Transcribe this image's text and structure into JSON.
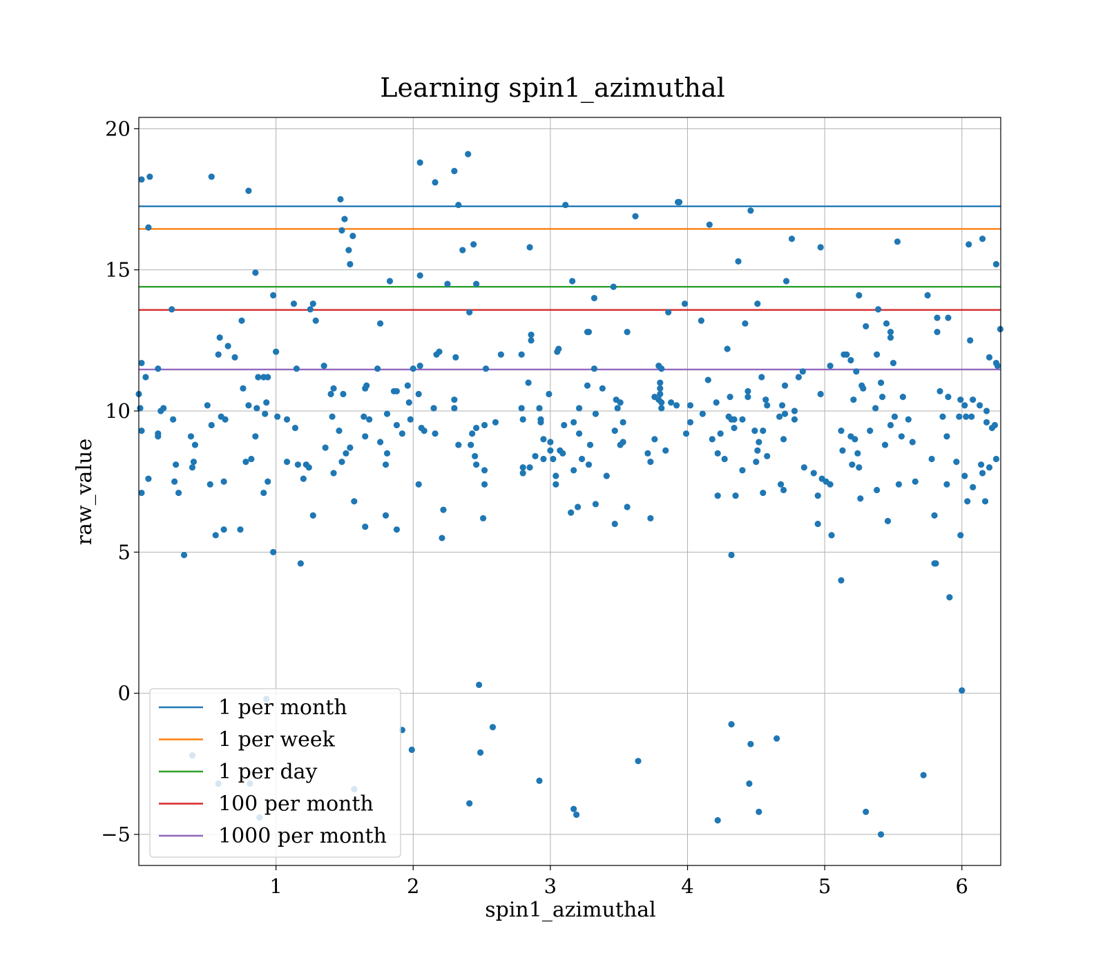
{
  "chart_data": {
    "type": "scatter",
    "title": "Learning spin1_azimuthal",
    "xlabel": "spin1_azimuthal",
    "ylabel": "raw_value",
    "xlim": [
      0.0,
      6.283
    ],
    "ylim": [
      -6.1,
      20.4
    ],
    "xticks": [
      1,
      2,
      3,
      4,
      5,
      6
    ],
    "yticks": [
      -5,
      0,
      5,
      10,
      15,
      20
    ],
    "xtick_labels": [
      "1",
      "2",
      "3",
      "4",
      "5",
      "6"
    ],
    "ytick_labels": [
      "−5",
      "0",
      "5",
      "10",
      "15",
      "20"
    ],
    "grid": true,
    "legend_position": "lower-left",
    "point_color": "#1f77b4",
    "hlines": [
      {
        "name": "1 per month",
        "y": 17.25,
        "color": "#1f77b4"
      },
      {
        "name": "1 per week",
        "y": 16.45,
        "color": "#ff7f0e"
      },
      {
        "name": "1 per day",
        "y": 14.4,
        "color": "#2ca02c"
      },
      {
        "name": "100 per month",
        "y": 13.58,
        "color": "#d62728"
      },
      {
        "name": "1000 per month",
        "y": 11.47,
        "color": "#9467bd"
      }
    ],
    "points": [
      [
        0.02,
        18.2
      ],
      [
        0.08,
        18.3
      ],
      [
        0.07,
        16.5
      ],
      [
        0.02,
        11.7
      ],
      [
        0.05,
        11.2
      ],
      [
        0.14,
        11.5
      ],
      [
        0.24,
        13.6
      ],
      [
        0.0,
        10.6
      ],
      [
        0.01,
        10.1
      ],
      [
        0.02,
        9.3
      ],
      [
        0.02,
        7.1
      ],
      [
        0.07,
        7.6
      ],
      [
        0.16,
        10.0
      ],
      [
        0.18,
        10.1
      ],
      [
        0.14,
        9.2
      ],
      [
        0.14,
        9.1
      ],
      [
        0.25,
        9.7
      ],
      [
        0.27,
        8.1
      ],
      [
        0.26,
        7.5
      ],
      [
        0.29,
        7.1
      ],
      [
        0.33,
        4.9
      ],
      [
        0.38,
        9.1
      ],
      [
        0.4,
        8.2
      ],
      [
        0.39,
        8.0
      ],
      [
        0.41,
        8.8
      ],
      [
        0.53,
        18.3
      ],
      [
        0.5,
        10.2
      ],
      [
        0.53,
        9.5
      ],
      [
        0.52,
        7.4
      ],
      [
        0.59,
        12.6
      ],
      [
        0.58,
        12.0
      ],
      [
        0.65,
        12.3
      ],
      [
        0.6,
        9.8
      ],
      [
        0.63,
        9.7
      ],
      [
        0.62,
        7.5
      ],
      [
        0.56,
        5.6
      ],
      [
        0.62,
        5.8
      ],
      [
        0.75,
        13.2
      ],
      [
        0.7,
        11.9
      ],
      [
        0.76,
        10.8
      ],
      [
        0.74,
        5.8
      ],
      [
        0.78,
        8.2
      ],
      [
        0.8,
        17.8
      ],
      [
        0.8,
        10.2
      ],
      [
        0.82,
        8.3
      ],
      [
        0.85,
        14.9
      ],
      [
        0.85,
        9.1
      ],
      [
        0.86,
        10.1
      ],
      [
        0.87,
        11.2
      ],
      [
        0.91,
        11.2
      ],
      [
        0.93,
        10.3
      ],
      [
        0.94,
        11.2
      ],
      [
        0.92,
        9.9
      ],
      [
        0.91,
        7.1
      ],
      [
        0.94,
        7.5
      ],
      [
        0.98,
        14.1
      ],
      [
        0.98,
        5.0
      ],
      [
        1.0,
        12.1
      ],
      [
        1.01,
        9.8
      ],
      [
        1.08,
        9.7
      ],
      [
        1.08,
        8.2
      ],
      [
        1.13,
        13.8
      ],
      [
        1.14,
        9.4
      ],
      [
        1.15,
        11.5
      ],
      [
        1.16,
        8.1
      ],
      [
        1.18,
        4.6
      ],
      [
        1.2,
        7.6
      ],
      [
        1.22,
        8.1
      ],
      [
        1.24,
        8.0
      ],
      [
        1.25,
        13.6
      ],
      [
        1.27,
        13.8
      ],
      [
        1.27,
        6.3
      ],
      [
        1.29,
        13.2
      ],
      [
        1.35,
        11.6
      ],
      [
        1.36,
        8.7
      ],
      [
        1.4,
        10.6
      ],
      [
        1.42,
        10.8
      ],
      [
        1.42,
        7.8
      ],
      [
        1.41,
        9.8
      ],
      [
        1.47,
        17.5
      ],
      [
        1.48,
        16.4
      ],
      [
        1.5,
        16.8
      ],
      [
        1.46,
        9.3
      ],
      [
        1.48,
        8.2
      ],
      [
        1.49,
        10.6
      ],
      [
        1.53,
        15.7
      ],
      [
        1.54,
        15.2
      ],
      [
        1.56,
        16.2
      ],
      [
        1.51,
        8.5
      ],
      [
        1.54,
        8.7
      ],
      [
        1.57,
        6.8
      ],
      [
        1.65,
        10.8
      ],
      [
        1.66,
        10.9
      ],
      [
        1.64,
        9.8
      ],
      [
        1.65,
        9.1
      ],
      [
        1.68,
        9.7
      ],
      [
        1.65,
        5.9
      ],
      [
        1.74,
        11.5
      ],
      [
        1.76,
        13.1
      ],
      [
        1.76,
        8.9
      ],
      [
        1.81,
        8.5
      ],
      [
        1.81,
        9.9
      ],
      [
        1.8,
        8.1
      ],
      [
        1.8,
        6.3
      ],
      [
        1.83,
        14.6
      ],
      [
        1.86,
        10.7
      ],
      [
        1.88,
        10.7
      ],
      [
        1.88,
        9.5
      ],
      [
        1.92,
        9.2
      ],
      [
        1.88,
        5.8
      ],
      [
        1.96,
        10.9
      ],
      [
        1.97,
        10.3
      ],
      [
        1.98,
        9.7
      ],
      [
        2.0,
        11.5
      ],
      [
        2.05,
        18.8
      ],
      [
        2.05,
        14.8
      ],
      [
        2.05,
        11.6
      ],
      [
        2.04,
        10.6
      ],
      [
        2.06,
        9.4
      ],
      [
        2.08,
        9.3
      ],
      [
        2.04,
        7.4
      ],
      [
        2.16,
        18.1
      ],
      [
        2.17,
        12.0
      ],
      [
        2.19,
        12.1
      ],
      [
        2.15,
        10.1
      ],
      [
        2.16,
        9.2
      ],
      [
        2.21,
        5.5
      ],
      [
        2.22,
        6.5
      ],
      [
        2.25,
        14.5
      ],
      [
        2.3,
        18.5
      ],
      [
        2.33,
        17.3
      ],
      [
        2.36,
        15.7
      ],
      [
        2.31,
        11.9
      ],
      [
        2.3,
        10.4
      ],
      [
        2.3,
        10.1
      ],
      [
        2.33,
        8.8
      ],
      [
        2.4,
        19.1
      ],
      [
        2.41,
        13.5
      ],
      [
        2.44,
        15.9
      ],
      [
        2.46,
        14.5
      ],
      [
        2.43,
        9.2
      ],
      [
        2.46,
        9.4
      ],
      [
        2.42,
        8.8
      ],
      [
        2.45,
        8.4
      ],
      [
        2.46,
        8.1
      ],
      [
        2.52,
        9.5
      ],
      [
        2.53,
        11.5
      ],
      [
        2.52,
        7.9
      ],
      [
        2.52,
        7.4
      ],
      [
        2.51,
        6.2
      ],
      [
        2.64,
        12.0
      ],
      [
        2.6,
        9.6
      ],
      [
        2.79,
        12.0
      ],
      [
        2.79,
        10.1
      ],
      [
        2.8,
        9.7
      ],
      [
        2.8,
        8.0
      ],
      [
        2.8,
        7.8
      ],
      [
        2.84,
        11.0
      ],
      [
        2.85,
        15.8
      ],
      [
        2.86,
        12.7
      ],
      [
        2.86,
        12.5
      ],
      [
        2.85,
        8.0
      ],
      [
        2.89,
        8.4
      ],
      [
        2.92,
        10.1
      ],
      [
        2.93,
        9.6
      ],
      [
        2.95,
        9.0
      ],
      [
        2.95,
        8.3
      ],
      [
        2.93,
        9.7
      ],
      [
        2.99,
        10.6
      ],
      [
        3.0,
        8.6
      ],
      [
        3.0,
        8.9
      ],
      [
        3.02,
        8.3
      ],
      [
        3.05,
        12.1
      ],
      [
        3.06,
        12.2
      ],
      [
        3.04,
        7.4
      ],
      [
        3.04,
        7.7
      ],
      [
        3.07,
        8.6
      ],
      [
        3.09,
        8.5
      ],
      [
        3.11,
        17.3
      ],
      [
        3.1,
        9.5
      ],
      [
        3.16,
        14.6
      ],
      [
        3.15,
        6.4
      ],
      [
        3.17,
        9.6
      ],
      [
        3.17,
        7.9
      ],
      [
        3.2,
        6.6
      ],
      [
        3.21,
        10.1
      ],
      [
        3.21,
        9.2
      ],
      [
        3.23,
        8.3
      ],
      [
        3.27,
        12.8
      ],
      [
        3.28,
        12.8
      ],
      [
        3.27,
        10.9
      ],
      [
        3.28,
        8.1
      ],
      [
        3.29,
        8.8
      ],
      [
        3.32,
        14.0
      ],
      [
        3.32,
        11.5
      ],
      [
        3.33,
        9.9
      ],
      [
        3.33,
        6.7
      ],
      [
        3.38,
        10.8
      ],
      [
        3.41,
        7.7
      ],
      [
        3.46,
        14.4
      ],
      [
        3.47,
        9.3
      ],
      [
        3.47,
        6.0
      ],
      [
        3.48,
        10.4
      ],
      [
        3.49,
        10.1
      ],
      [
        3.51,
        10.3
      ],
      [
        3.51,
        8.8
      ],
      [
        3.53,
        8.9
      ],
      [
        3.53,
        9.6
      ],
      [
        3.56,
        12.8
      ],
      [
        3.56,
        6.6
      ],
      [
        3.62,
        16.9
      ],
      [
        3.71,
        8.5
      ],
      [
        3.73,
        8.2
      ],
      [
        3.73,
        6.2
      ],
      [
        3.76,
        10.5
      ],
      [
        3.76,
        9.0
      ],
      [
        3.79,
        11.6
      ],
      [
        3.8,
        11.0
      ],
      [
        3.8,
        10.8
      ],
      [
        3.8,
        10.6
      ],
      [
        3.79,
        10.4
      ],
      [
        3.81,
        11.5
      ],
      [
        3.81,
        10.3
      ],
      [
        3.81,
        10.1
      ],
      [
        3.84,
        8.6
      ],
      [
        3.86,
        13.5
      ],
      [
        3.88,
        10.3
      ],
      [
        3.93,
        17.4
      ],
      [
        3.94,
        17.4
      ],
      [
        3.92,
        10.2
      ],
      [
        3.98,
        13.8
      ],
      [
        3.99,
        9.2
      ],
      [
        4.02,
        10.2
      ],
      [
        4.02,
        9.6
      ],
      [
        4.1,
        13.2
      ],
      [
        4.11,
        9.9
      ],
      [
        4.15,
        11.1
      ],
      [
        4.16,
        16.6
      ],
      [
        4.18,
        9.0
      ],
      [
        4.21,
        10.3
      ],
      [
        4.22,
        8.5
      ],
      [
        4.22,
        7.0
      ],
      [
        4.24,
        9.2
      ],
      [
        4.27,
        8.3
      ],
      [
        4.29,
        12.2
      ],
      [
        4.31,
        10.5
      ],
      [
        4.3,
        9.8
      ],
      [
        4.32,
        9.7
      ],
      [
        4.34,
        9.7
      ],
      [
        4.34,
        9.4
      ],
      [
        4.35,
        7.0
      ],
      [
        4.32,
        4.9
      ],
      [
        4.37,
        15.3
      ],
      [
        4.4,
        9.7
      ],
      [
        4.42,
        13.1
      ],
      [
        4.44,
        10.7
      ],
      [
        4.44,
        10.5
      ],
      [
        4.46,
        17.1
      ],
      [
        4.4,
        7.9
      ],
      [
        4.49,
        9.3
      ],
      [
        4.5,
        8.2
      ],
      [
        4.51,
        13.8
      ],
      [
        4.51,
        8.6
      ],
      [
        4.52,
        8.9
      ],
      [
        4.54,
        11.2
      ],
      [
        4.55,
        9.3
      ],
      [
        4.55,
        7.1
      ],
      [
        4.57,
        10.4
      ],
      [
        4.58,
        10.2
      ],
      [
        4.58,
        8.4
      ],
      [
        4.67,
        9.8
      ],
      [
        4.69,
        10.2
      ],
      [
        4.71,
        10.9
      ],
      [
        4.72,
        14.6
      ],
      [
        4.71,
        9.9
      ],
      [
        4.7,
        9.0
      ],
      [
        4.68,
        7.4
      ],
      [
        4.7,
        7.2
      ],
      [
        4.76,
        16.1
      ],
      [
        4.78,
        10.0
      ],
      [
        4.78,
        9.7
      ],
      [
        4.81,
        11.2
      ],
      [
        4.84,
        11.4
      ],
      [
        4.85,
        8.0
      ],
      [
        4.92,
        7.8
      ],
      [
        4.95,
        7.0
      ],
      [
        4.95,
        6.0
      ],
      [
        4.97,
        15.8
      ],
      [
        4.97,
        10.6
      ],
      [
        4.98,
        7.6
      ],
      [
        5.01,
        7.5
      ],
      [
        5.04,
        7.4
      ],
      [
        5.04,
        11.6
      ],
      [
        5.05,
        5.6
      ],
      [
        5.12,
        9.3
      ],
      [
        5.13,
        8.6
      ],
      [
        5.12,
        4.0
      ],
      [
        5.14,
        12.0
      ],
      [
        5.16,
        12.0
      ],
      [
        5.19,
        11.8
      ],
      [
        5.19,
        9.1
      ],
      [
        5.2,
        8.1
      ],
      [
        5.21,
        10.4
      ],
      [
        5.22,
        9.0
      ],
      [
        5.23,
        11.4
      ],
      [
        5.25,
        14.1
      ],
      [
        5.24,
        8.5
      ],
      [
        5.25,
        8.0
      ],
      [
        5.27,
        10.9
      ],
      [
        5.28,
        10.8
      ],
      [
        5.26,
        6.9
      ],
      [
        5.3,
        13.0
      ],
      [
        5.33,
        9.3
      ],
      [
        5.37,
        10.1
      ],
      [
        5.38,
        12.0
      ],
      [
        5.39,
        13.6
      ],
      [
        5.38,
        7.2
      ],
      [
        5.41,
        11.0
      ],
      [
        5.42,
        10.5
      ],
      [
        5.44,
        8.8
      ],
      [
        5.45,
        13.1
      ],
      [
        5.46,
        6.1
      ],
      [
        5.48,
        12.8
      ],
      [
        5.48,
        12.6
      ],
      [
        5.48,
        9.5
      ],
      [
        5.5,
        11.7
      ],
      [
        5.51,
        9.8
      ],
      [
        5.53,
        16.0
      ],
      [
        5.54,
        7.4
      ],
      [
        5.57,
        10.5
      ],
      [
        5.56,
        9.1
      ],
      [
        5.61,
        9.7
      ],
      [
        5.64,
        8.9
      ],
      [
        5.66,
        7.5
      ],
      [
        5.75,
        14.1
      ],
      [
        5.78,
        8.3
      ],
      [
        5.8,
        6.3
      ],
      [
        5.8,
        4.6
      ],
      [
        5.81,
        4.6
      ],
      [
        5.82,
        13.3
      ],
      [
        5.82,
        12.8
      ],
      [
        5.84,
        10.7
      ],
      [
        5.86,
        9.8
      ],
      [
        5.89,
        9.1
      ],
      [
        5.89,
        7.4
      ],
      [
        5.9,
        13.3
      ],
      [
        5.9,
        10.5
      ],
      [
        5.91,
        3.4
      ],
      [
        5.96,
        8.2
      ],
      [
        5.99,
        10.4
      ],
      [
        5.98,
        9.8
      ],
      [
        5.99,
        5.6
      ],
      [
        6.02,
        10.2
      ],
      [
        6.03,
        9.8
      ],
      [
        6.02,
        7.7
      ],
      [
        6.04,
        6.8
      ],
      [
        6.05,
        15.9
      ],
      [
        6.06,
        12.5
      ],
      [
        6.07,
        9.8
      ],
      [
        6.08,
        10.4
      ],
      [
        6.08,
        7.3
      ],
      [
        6.13,
        10.2
      ],
      [
        6.14,
        8.1
      ],
      [
        6.15,
        16.1
      ],
      [
        6.15,
        7.8
      ],
      [
        6.17,
        6.8
      ],
      [
        6.18,
        9.6
      ],
      [
        6.18,
        10.0
      ],
      [
        6.2,
        11.9
      ],
      [
        6.2,
        8.0
      ],
      [
        6.22,
        9.4
      ],
      [
        6.24,
        9.5
      ],
      [
        6.25,
        15.2
      ],
      [
        6.25,
        11.7
      ],
      [
        6.26,
        11.6
      ],
      [
        6.25,
        8.3
      ],
      [
        6.28,
        12.9
      ],
      [
        0.93,
        -0.2
      ],
      [
        0.39,
        -2.2
      ],
      [
        0.58,
        -3.2
      ],
      [
        0.81,
        -3.2
      ],
      [
        0.88,
        -4.4
      ],
      [
        1.57,
        -3.4
      ],
      [
        1.92,
        -1.3
      ],
      [
        1.99,
        -2.0
      ],
      [
        2.48,
        0.3
      ],
      [
        2.49,
        -2.1
      ],
      [
        2.58,
        -1.2
      ],
      [
        2.41,
        -3.9
      ],
      [
        2.92,
        -3.1
      ],
      [
        3.17,
        -4.1
      ],
      [
        3.19,
        -4.3
      ],
      [
        3.64,
        -2.4
      ],
      [
        4.22,
        -4.5
      ],
      [
        4.32,
        -1.1
      ],
      [
        4.46,
        -1.8
      ],
      [
        4.45,
        -3.2
      ],
      [
        4.52,
        -4.2
      ],
      [
        4.65,
        -1.6
      ],
      [
        5.3,
        -4.2
      ],
      [
        5.41,
        -5.0
      ],
      [
        5.72,
        -2.9
      ],
      [
        6.0,
        0.1
      ]
    ]
  },
  "legend": {
    "items": [
      {
        "label": "1 per month",
        "color": "#1f77b4"
      },
      {
        "label": "1 per week",
        "color": "#ff7f0e"
      },
      {
        "label": "1 per day",
        "color": "#2ca02c"
      },
      {
        "label": "100 per month",
        "color": "#d62728"
      },
      {
        "label": "1000 per month",
        "color": "#9467bd"
      }
    ]
  }
}
